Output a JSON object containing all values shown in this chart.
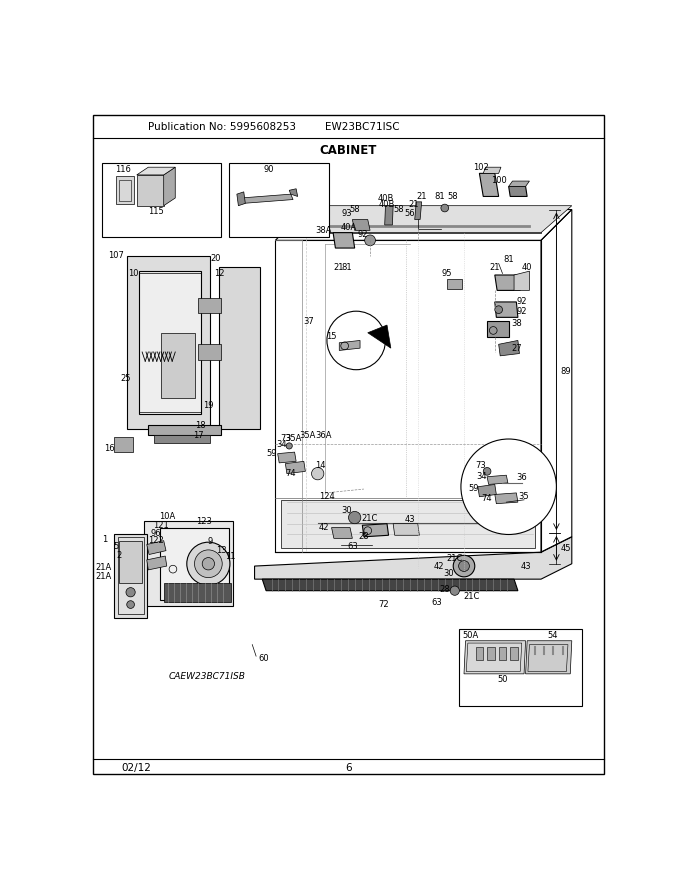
{
  "publication_no": "Publication No: 5995608253",
  "model": "EW23BC71ISC",
  "section_title": "CABINET",
  "date": "02/12",
  "page": "6",
  "sub_model": "CAEW23BC71ISB",
  "bg_color": "#ffffff",
  "border_color": "#000000",
  "lw_thin": 0.5,
  "lw_med": 0.8,
  "lw_thick": 1.2,
  "header_fontsize": 7.5,
  "title_fontsize": 8.5,
  "label_fontsize": 6.0,
  "footer_fontsize": 7.5
}
